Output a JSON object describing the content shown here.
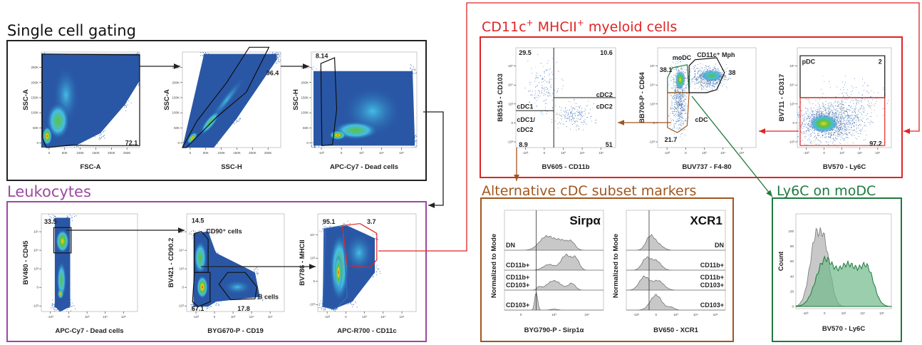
{
  "colors": {
    "single": "#222222",
    "leukocytes": "#9b4a9f",
    "myeloid": "#e02424",
    "alt_cdc": "#a0561e",
    "ly6c": "#1f7a3e",
    "density_low": "#1f4ea0",
    "histogram_gray": "#c8c8c8",
    "histogram_green": "#6fb98a"
  },
  "sections": {
    "single_cell": {
      "title": "Single cell gating"
    },
    "leukocytes": {
      "title": "Leukocytes"
    },
    "myeloid": {
      "t1": "CD11c",
      "s1": "+",
      "t2": " MHCII",
      "s2": "+",
      "t3": " myeloid cells"
    },
    "alt_cdc": {
      "title": "Alternative cDC subset markers"
    },
    "ly6c": {
      "title": "Ly6C on moDC"
    }
  },
  "plots": [
    {
      "xlabel": "FSC-A",
      "ylabel": "SSC-A",
      "xticks": [
        "0",
        "50K",
        "100K",
        "150K",
        "200K",
        "250K"
      ],
      "yticks": [
        "0",
        "50K",
        "100K",
        "150K",
        "200K",
        "250K"
      ],
      "labels": [
        {
          "text": "72.1"
        }
      ]
    },
    {
      "xlabel": "SSC-H",
      "ylabel": "SSC-A",
      "xticks": [
        "0",
        "50K",
        "100K",
        "150K",
        "200K",
        "250K"
      ],
      "yticks": [
        "0",
        "50K",
        "100K",
        "150K",
        "200K",
        "250K"
      ],
      "labels": [
        {
          "text": "96.4"
        }
      ]
    },
    {
      "xlabel": "APC-Cy7 - Dead cells",
      "ylabel": "SSC-H",
      "xticks": [
        "-10³",
        "0",
        "10³",
        "10⁴",
        "10⁵"
      ],
      "yticks": [
        "0",
        "50K",
        "100K",
        "150K",
        "200K",
        "250K"
      ],
      "labels": [
        {
          "text": "8.14"
        }
      ]
    },
    {
      "xlabel": "APC-Cy7 - Dead cells",
      "ylabel": "BV480 - CD45",
      "xticks": [
        "-10³",
        "0",
        "10³",
        "10⁴",
        "10⁵"
      ],
      "yticks": [
        "-10³",
        "0",
        "10³",
        "10⁴",
        "10⁵"
      ],
      "labels": [
        {
          "text": "33.5"
        }
      ]
    },
    {
      "xlabel": "BYG670-P - CD19",
      "ylabel": "BV421 - CD90.2",
      "xticks": [
        "-10³",
        "0",
        "10³",
        "10⁴",
        "10⁵"
      ],
      "yticks": [
        "-10³",
        "0",
        "10³",
        "10⁴",
        "10⁵"
      ],
      "labels": [
        {
          "text": "14.5"
        },
        {
          "text": "CD90⁺ cells"
        },
        {
          "text": "B cells"
        },
        {
          "text": "67.1"
        },
        {
          "text": "17.8"
        }
      ]
    },
    {
      "xlabel": "APC-R700 - CD11c",
      "ylabel": "BV786 - MHCII",
      "xticks": [
        "-10³",
        "0",
        "10³",
        "10⁴",
        "10⁵"
      ],
      "yticks": [
        "-10³",
        "0",
        "10³",
        "10⁴"
      ],
      "labels": [
        {
          "text": "95.1"
        },
        {
          "text": "3.7"
        }
      ]
    },
    {
      "xlabel": "BV605 - CD11b",
      "ylabel": "BB515 - CD103",
      "xticks": [
        "-10³",
        "0",
        "10³",
        "10⁴",
        "10⁵"
      ],
      "yticks": [
        "-10³",
        "0",
        "10³",
        "10⁴",
        "10⁵"
      ],
      "labels": [
        {
          "text": "29.5"
        },
        {
          "text": "10.6"
        },
        {
          "text": "cDC2"
        },
        {
          "text": "cDC2"
        },
        {
          "text": "cDC1"
        },
        {
          "text": "cDC1/"
        },
        {
          "text": "cDC2"
        },
        {
          "text": "8.9"
        },
        {
          "text": "51"
        }
      ]
    },
    {
      "xlabel": "BUV737 - F4-80",
      "ylabel": "BB700-P - CD64",
      "xticks": [
        "-10³",
        "0",
        "10³",
        "10⁴",
        "10⁵"
      ],
      "yticks": [
        "-10³",
        "0",
        "10³",
        "10⁴",
        "10⁵"
      ],
      "labels": [
        {
          "text": "moDC"
        },
        {
          "text": "CD11c⁺ Mph"
        },
        {
          "text": "38.1"
        },
        {
          "text": "38"
        },
        {
          "text": "cDC"
        },
        {
          "text": "21.7"
        }
      ]
    },
    {
      "xlabel": "BV570 - Ly6C",
      "ylabel": "BV711 - CD317",
      "xticks": [
        "-10³",
        "0",
        "10³",
        "10⁴",
        "10⁵"
      ],
      "yticks": [
        "-10³",
        "0",
        "10³",
        "10⁴",
        "10⁵"
      ],
      "labels": [
        {
          "text": "pDC"
        },
        {
          "text": "2"
        },
        {
          "text": "97.2"
        }
      ]
    }
  ],
  "histograms": [
    {
      "title": "Sirpα",
      "xlabel": "BYG790-P - Sirp1α",
      "ylabel": "Normalized to Mode",
      "xticks": [
        "0",
        "10³",
        "10⁴"
      ],
      "rows": [
        "DN",
        "CD11b+",
        "CD11b+\nCD103+",
        "CD103+"
      ]
    },
    {
      "title": "XCR1",
      "xlabel": "BV650 - XCR1",
      "ylabel": "Normalized to Mode",
      "xticks": [
        "-10³",
        "0",
        "10³",
        "10⁴",
        "10⁵"
      ],
      "rows": [
        "DN",
        "CD11b+",
        "CD11b+\nCD103+",
        "CD103+"
      ]
    },
    {
      "title": "",
      "xlabel": "BV570 - Ly6C",
      "ylabel": "Count",
      "xticks": [
        "-10³",
        "0",
        "10³",
        "10⁴",
        "10⁵"
      ],
      "yticks": [
        "0",
        "20",
        "40",
        "60",
        "80",
        "100"
      ]
    }
  ]
}
